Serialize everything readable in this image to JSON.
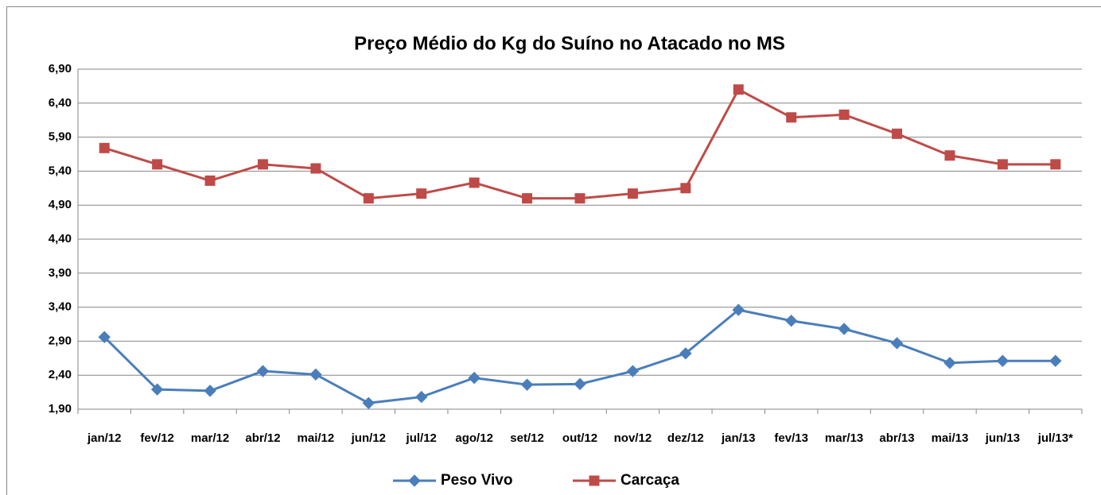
{
  "chart_data": {
    "type": "line",
    "title": "Preço Médio do Kg do Suíno no Atacado no MS",
    "categories": [
      "jan/12",
      "fev/12",
      "mar/12",
      "abr/12",
      "mai/12",
      "jun/12",
      "jul/12",
      "ago/12",
      "set/12",
      "out/12",
      "nov/12",
      "dez/12",
      "jan/13",
      "fev/13",
      "mar/13",
      "abr/13",
      "mai/13",
      "jun/13",
      "jul/13*"
    ],
    "series": [
      {
        "name": "Peso Vivo",
        "color": "#4a7ebb",
        "marker": "diamond",
        "values": [
          2.96,
          2.19,
          2.17,
          2.46,
          2.41,
          1.99,
          2.08,
          2.36,
          2.26,
          2.27,
          2.46,
          2.72,
          3.36,
          3.2,
          3.08,
          2.87,
          2.58,
          2.61,
          2.61
        ]
      },
      {
        "name": "Carcaça",
        "color": "#be4b48",
        "marker": "square",
        "values": [
          5.74,
          5.5,
          5.26,
          5.5,
          5.44,
          5.0,
          5.07,
          5.23,
          5.0,
          5.0,
          5.07,
          5.15,
          6.6,
          6.19,
          6.23,
          5.95,
          5.63,
          5.5,
          5.5
        ]
      }
    ],
    "ylim": [
      1.9,
      6.9
    ],
    "yticks": [
      {
        "value": 1.9,
        "label": "1,90"
      },
      {
        "value": 2.4,
        "label": "2,40"
      },
      {
        "value": 2.9,
        "label": "2,90"
      },
      {
        "value": 3.4,
        "label": "3,40"
      },
      {
        "value": 3.9,
        "label": "3,90"
      },
      {
        "value": 4.4,
        "label": "4,40"
      },
      {
        "value": 4.9,
        "label": "4,90"
      },
      {
        "value": 5.4,
        "label": "5,40"
      },
      {
        "value": 5.9,
        "label": "5,90"
      },
      {
        "value": 6.4,
        "label": "6,40"
      },
      {
        "value": 6.9,
        "label": "6,90"
      }
    ],
    "grid": true,
    "legend": "bottom"
  }
}
